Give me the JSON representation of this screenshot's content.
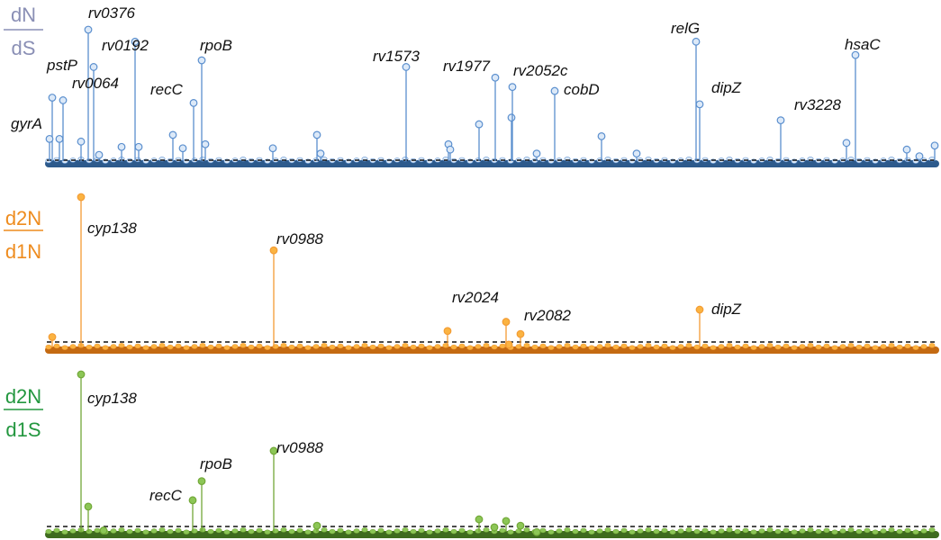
{
  "chart_data": [
    {
      "type": "lollipop",
      "ratio_numerator": "dN",
      "ratio_denominator": "dS",
      "color": "#5b8fce",
      "fill": "#dce9f8",
      "label_color": "#8a8fb5",
      "baseline_color": "#2d5a8c",
      "ylim": [
        0,
        1.0
      ],
      "threshold": 0.0,
      "labeled_points": [
        {
          "x": 55,
          "y": 0.18,
          "label": "gyrA"
        },
        {
          "x": 70,
          "y": 0.47,
          "label": "pstP"
        },
        {
          "x": 98,
          "y": 1.0,
          "label": "rv0376"
        },
        {
          "x": 104,
          "y": 0.72,
          "label": "rv0064"
        },
        {
          "x": 150,
          "y": 0.91,
          "label": "rv0192"
        },
        {
          "x": 215,
          "y": 0.45,
          "label": "recC"
        },
        {
          "x": 224,
          "y": 0.77,
          "label": "rpoB"
        },
        {
          "x": 451,
          "y": 0.72,
          "label": "rv1573"
        },
        {
          "x": 550,
          "y": 0.64,
          "label": "rv1977"
        },
        {
          "x": 569,
          "y": 0.57,
          "label": "rv2052c"
        },
        {
          "x": 616,
          "y": 0.54,
          "label": "cobD"
        },
        {
          "x": 773,
          "y": 0.91,
          "label": "relG"
        },
        {
          "x": 777,
          "y": 0.44,
          "label": "dipZ"
        },
        {
          "x": 867,
          "y": 0.32,
          "label": "rv3228"
        },
        {
          "x": 950,
          "y": 0.81,
          "label": "hsaC"
        }
      ],
      "other_points": [
        {
          "x": 58,
          "y": 0.49
        },
        {
          "x": 66,
          "y": 0.18
        },
        {
          "x": 90,
          "y": 0.16
        },
        {
          "x": 110,
          "y": 0.06
        },
        {
          "x": 135,
          "y": 0.12
        },
        {
          "x": 154,
          "y": 0.12
        },
        {
          "x": 192,
          "y": 0.21
        },
        {
          "x": 203,
          "y": 0.11
        },
        {
          "x": 228,
          "y": 0.14
        },
        {
          "x": 303,
          "y": 0.11
        },
        {
          "x": 352,
          "y": 0.21
        },
        {
          "x": 356,
          "y": 0.07
        },
        {
          "x": 498,
          "y": 0.14
        },
        {
          "x": 500,
          "y": 0.1
        },
        {
          "x": 532,
          "y": 0.29
        },
        {
          "x": 568,
          "y": 0.34
        },
        {
          "x": 596,
          "y": 0.07
        },
        {
          "x": 668,
          "y": 0.2
        },
        {
          "x": 707,
          "y": 0.07
        },
        {
          "x": 940,
          "y": 0.15
        },
        {
          "x": 1007,
          "y": 0.1
        },
        {
          "x": 1021,
          "y": 0.05
        },
        {
          "x": 1038,
          "y": 0.13
        }
      ]
    },
    {
      "type": "lollipop",
      "ratio_numerator": "d2N",
      "ratio_denominator": "d1N",
      "color": "#f39c34",
      "fill": "#fbb341",
      "label_color": "#ee8c1f",
      "baseline_color": "#c46a12",
      "ylim": [
        0,
        1.0
      ],
      "threshold": 0.0,
      "labeled_points": [
        {
          "x": 90,
          "y": 1.0,
          "label": "cyp138"
        },
        {
          "x": 304,
          "y": 0.65,
          "label": "rv0988"
        },
        {
          "x": 562,
          "y": 0.18,
          "label": "rv2024"
        },
        {
          "x": 578,
          "y": 0.1,
          "label": "rv2082"
        },
        {
          "x": 777,
          "y": 0.26,
          "label": "dipZ"
        }
      ],
      "other_points": [
        {
          "x": 58,
          "y": 0.08
        },
        {
          "x": 497,
          "y": 0.12
        },
        {
          "x": 565,
          "y": 0.03
        }
      ]
    },
    {
      "type": "lollipop",
      "ratio_numerator": "d2N",
      "ratio_denominator": "d1S",
      "color": "#72a838",
      "fill": "#8cc656",
      "label_color": "#23973f",
      "baseline_color": "#3e6b1e",
      "ylim": [
        0,
        1.0
      ],
      "threshold": 0.0,
      "labeled_points": [
        {
          "x": 90,
          "y": 1.0,
          "label": "cyp138"
        },
        {
          "x": 214,
          "y": 0.21,
          "label": "recC"
        },
        {
          "x": 224,
          "y": 0.33,
          "label": "rpoB"
        },
        {
          "x": 304,
          "y": 0.52,
          "label": "rv0988"
        }
      ],
      "other_points": [
        {
          "x": 98,
          "y": 0.17
        },
        {
          "x": 115,
          "y": 0.02
        },
        {
          "x": 352,
          "y": 0.05
        },
        {
          "x": 532,
          "y": 0.09
        },
        {
          "x": 549,
          "y": 0.04
        },
        {
          "x": 562,
          "y": 0.08
        },
        {
          "x": 578,
          "y": 0.05
        },
        {
          "x": 596,
          "y": 0.01
        }
      ]
    }
  ]
}
